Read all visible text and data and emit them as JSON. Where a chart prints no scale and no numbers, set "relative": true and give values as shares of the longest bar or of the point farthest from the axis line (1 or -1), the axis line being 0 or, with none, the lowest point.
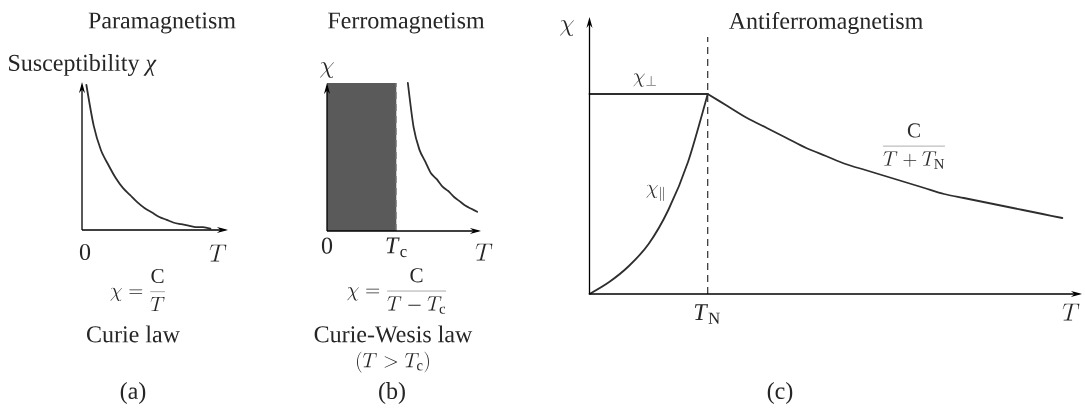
{
  "chart_data": [
    {
      "type": "line",
      "title": "Paramagnetism",
      "xlabel": "T",
      "ylabel": "Susceptibility *χ*",
      "relative": true,
      "color": "#2e2e2e",
      "categories": [
        null,
        null,
        null,
        null,
        null,
        null,
        null,
        null,
        null,
        null,
        null,
        null,
        null,
        null,
        null,
        null,
        null,
        null
      ],
      "values": [
        1,
        0.72,
        0.55,
        0.45,
        0.36,
        0.29,
        0.24,
        0.19,
        0.15,
        0.12,
        0.09,
        0.07,
        0.05,
        0.04,
        0.03,
        0.02,
        0.02,
        0.01
      ],
      "annotations": [
        "0",
        "\\chi = \\frac{\\mathrm{C}}{T}",
        "Curie law",
        "(a)"
      ]
    },
    {
      "type": "line",
      "title": "Ferromagnetism",
      "xlabel": "T",
      "ylabel": "\\chi",
      "relative": true,
      "color": "#2e2e2e",
      "categories": [
        "0",
        null,
        null,
        null,
        null,
        null,
        null,
        null,
        null,
        null,
        null,
        null,
        "*T*$_{c}$",
        null,
        null,
        null,
        null,
        null,
        null,
        null,
        null,
        null,
        null,
        null,
        null,
        null,
        null
      ],
      "values": [
        null,
        null,
        null,
        null,
        null,
        null,
        null,
        null,
        null,
        null,
        null,
        null,
        null,
        null,
        1,
        0.7,
        0.55,
        0.47,
        0.39,
        0.35,
        0.3,
        0.27,
        0.23,
        0.2,
        0.17,
        0.15,
        0.13
      ],
      "bands": [
        {
          "axis": "x",
          "from": "0",
          "to": "*T*$_{c}$",
          "color": "#5a5a5a"
        }
      ],
      "ref_lines": [
        {
          "axis": "x",
          "value": "*T*$_{c}$",
          "line_style": "dashed",
          "color": "#8c8c8c"
        }
      ],
      "annotations": [
        "\\chi = \\frac{\\mathrm{C}}{T - T_\\mathrm{c}}",
        "Curie-Wesis law",
        "(T > T_\\mathrm{c})",
        "(b)"
      ]
    },
    {
      "type": "line",
      "title": "Antiferromagnetism",
      "xlabel": "T",
      "ylabel": "\\chi",
      "relative": true,
      "categories": [
        null,
        null,
        null,
        null,
        null,
        null,
        null,
        null,
        null,
        null,
        null,
        null,
        null,
        null,
        null,
        null,
        null,
        null,
        null,
        null,
        null,
        null,
        null,
        null,
        null
      ],
      "series": [
        {
          "name": "\\chi_{\\perp}",
          "color": "#2e2e2e",
          "values": [
            1,
            1,
            1,
            1,
            1,
            1,
            1,
            null,
            null,
            null,
            null,
            null,
            null,
            null,
            null,
            null,
            null,
            null,
            null,
            null,
            null,
            null,
            null,
            null,
            null
          ]
        },
        {
          "name": "\\chi_{\\parallel}",
          "color": "#2e2e2e",
          "values": [
            0,
            0.06,
            0.14,
            0.25,
            0.42,
            0.66,
            1,
            null,
            null,
            null,
            null,
            null,
            null,
            null,
            null,
            null,
            null,
            null,
            null,
            null,
            null,
            null,
            null,
            null,
            null
          ]
        },
        {
          "name": "\\frac{\\mathrm{C}}{T + T_\\mathrm{N}}",
          "color": "#2e2e2e",
          "values": [
            null,
            null,
            null,
            null,
            null,
            null,
            1,
            0.94,
            0.88,
            0.83,
            0.78,
            0.73,
            0.69,
            0.65,
            0.62,
            0.59,
            0.56,
            0.53,
            0.5,
            0.48,
            0.46,
            0.44,
            0.42,
            0.4,
            0.38
          ]
        }
      ],
      "annotations": [
        "*T*$_{N}$",
        "(c)"
      ]
    }
  ]
}
